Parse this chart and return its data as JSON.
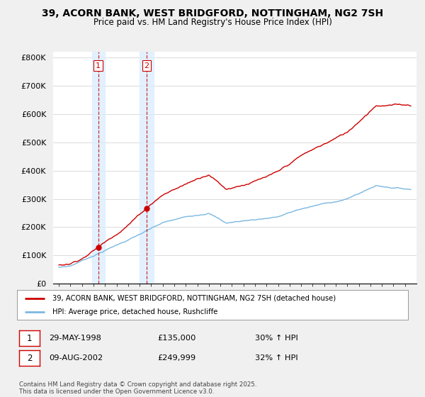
{
  "title": "39, ACORN BANK, WEST BRIDGFORD, NOTTINGHAM, NG2 7SH",
  "subtitle": "Price paid vs. HM Land Registry's House Price Index (HPI)",
  "ylim": [
    0,
    820000
  ],
  "yticks": [
    0,
    100000,
    200000,
    300000,
    400000,
    500000,
    600000,
    700000,
    800000
  ],
  "ytick_labels": [
    "£0",
    "£100K",
    "£200K",
    "£300K",
    "£400K",
    "£500K",
    "£600K",
    "£700K",
    "£800K"
  ],
  "hpi_color": "#7ab8e0",
  "price_color": "#cc0000",
  "bg_color": "#f0f0f0",
  "plot_bg": "#ffffff",
  "grid_color": "#cccccc",
  "sale1_date": 1998.41,
  "sale1_price": 135000,
  "sale2_date": 2002.61,
  "sale2_price": 249999,
  "shade_color": "#ddeeff",
  "shade_x1_start": 1997.9,
  "shade_x1_end": 1999.0,
  "shade_x2_start": 2002.0,
  "shade_x2_end": 2003.25,
  "legend_line1": "39, ACORN BANK, WEST BRIDGFORD, NOTTINGHAM, NG2 7SH (detached house)",
  "legend_line2": "HPI: Average price, detached house, Rushcliffe",
  "table_row1": [
    "1",
    "29-MAY-1998",
    "£135,000",
    "30% ↑ HPI"
  ],
  "table_row2": [
    "2",
    "09-AUG-2002",
    "£249,999",
    "32% ↑ HPI"
  ],
  "footer": "Contains HM Land Registry data © Crown copyright and database right 2025.\nThis data is licensed under the Open Government Licence v3.0.",
  "xmin": 1994.5,
  "xmax": 2026.0,
  "xtick_start": 1995,
  "xtick_end": 2025
}
